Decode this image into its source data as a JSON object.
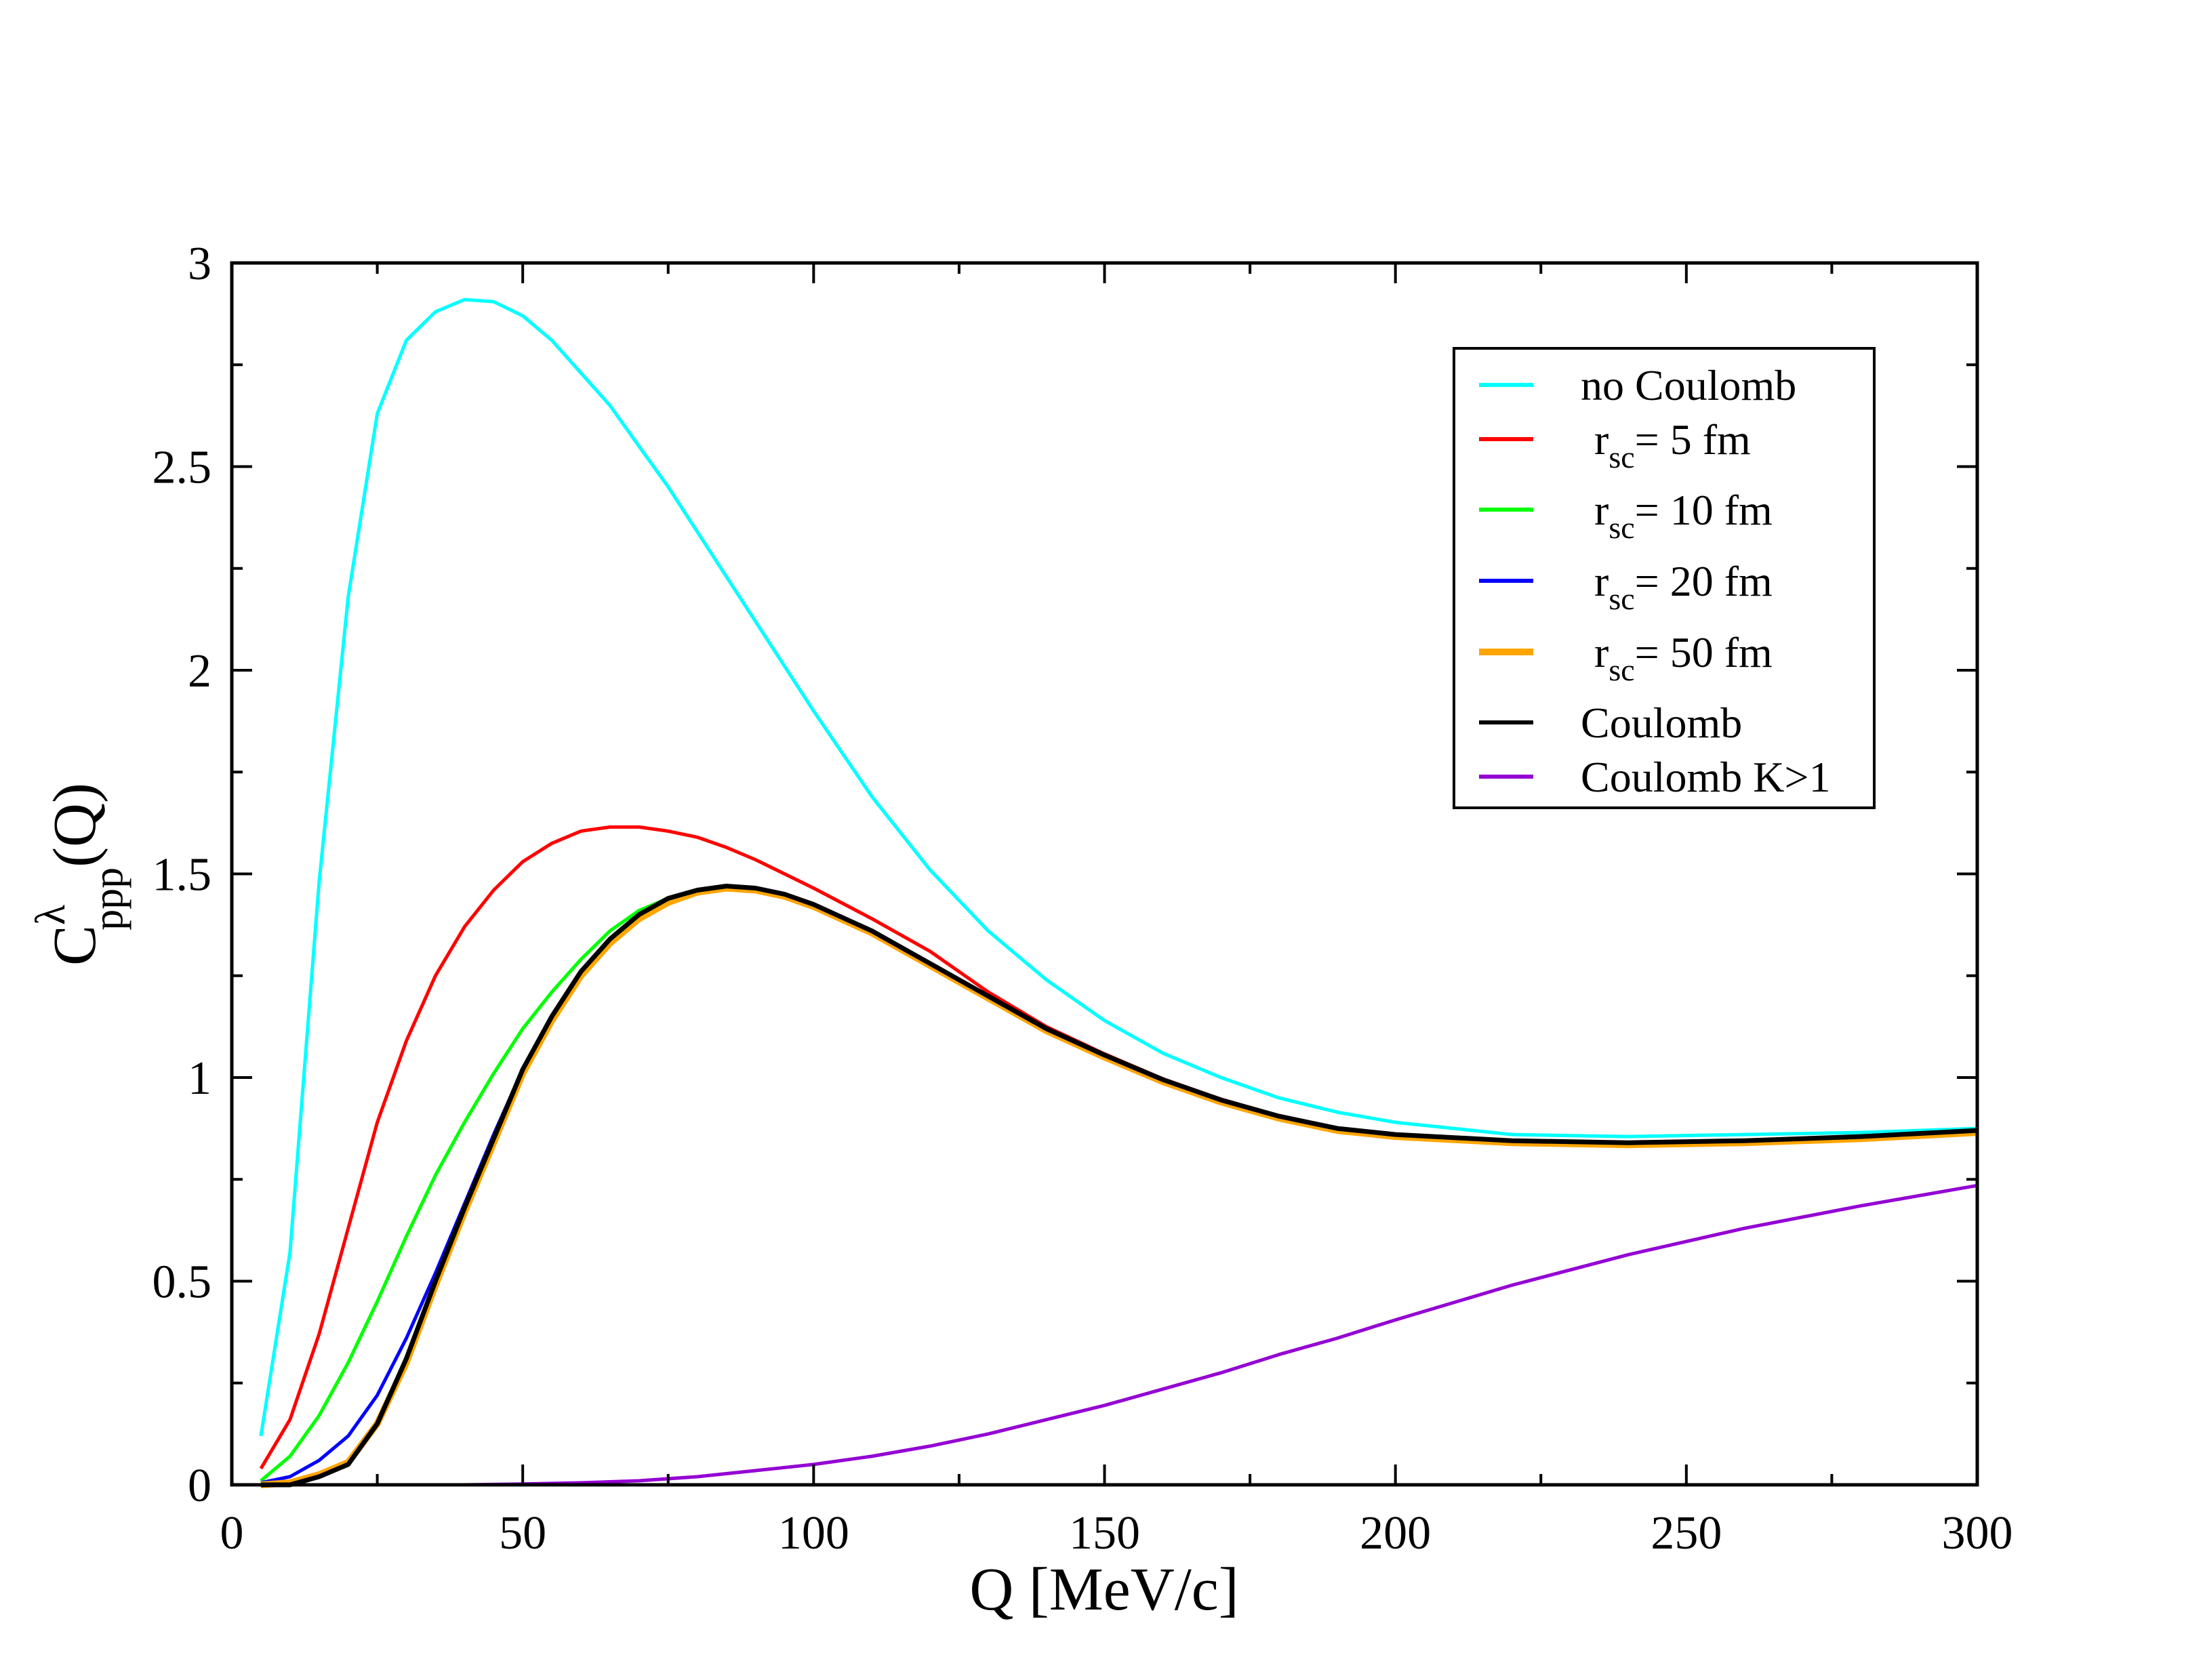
{
  "chart_data": {
    "type": "line",
    "xlabel": "Q [MeV/c]",
    "ylabel": {
      "main": "C",
      "sup": "λ",
      "sub": "ppp",
      "rest": "(Q)"
    },
    "xlim": [
      0,
      300
    ],
    "ylim": [
      0,
      3
    ],
    "xticks": [
      "0",
      "50",
      "100",
      "150",
      "200",
      "250",
      "300"
    ],
    "xtick_values": [
      0,
      50,
      100,
      150,
      200,
      250,
      300
    ],
    "yticks": [
      "0",
      "0.5",
      "1",
      "1.5",
      "2",
      "2.5",
      "3"
    ],
    "ytick_values": [
      0,
      0.5,
      1,
      1.5,
      2,
      2.5,
      3
    ],
    "grid": false,
    "legend_placement": "top-right",
    "series": [
      {
        "name": "no Coulomb",
        "label": {
          "main": "no Coulomb"
        },
        "color": "#00ffff",
        "x": [
          5,
          10,
          15,
          20,
          25,
          30,
          35,
          40,
          45,
          50,
          55,
          60,
          65,
          70,
          75,
          80,
          90,
          100,
          110,
          120,
          130,
          140,
          150,
          160,
          170,
          180,
          190,
          200,
          220,
          240,
          260,
          280,
          300
        ],
        "y": [
          0.12,
          0.57,
          1.48,
          2.18,
          2.63,
          2.81,
          2.88,
          2.91,
          2.905,
          2.87,
          2.81,
          2.73,
          2.65,
          2.55,
          2.45,
          2.34,
          2.12,
          1.9,
          1.69,
          1.51,
          1.36,
          1.24,
          1.14,
          1.06,
          1.0,
          0.95,
          0.915,
          0.89,
          0.86,
          0.855,
          0.86,
          0.865,
          0.875
        ]
      },
      {
        "name": "r_sc= 5 fm",
        "label": {
          "main": "r",
          "sub": "sc",
          "rest": "= 5 fm"
        },
        "color": "#ff0000",
        "x": [
          5,
          10,
          15,
          20,
          25,
          30,
          35,
          40,
          45,
          50,
          55,
          60,
          65,
          70,
          75,
          80,
          85,
          90,
          100,
          110,
          120,
          130,
          140,
          150,
          160,
          170,
          180,
          190,
          200,
          220,
          240,
          260,
          280,
          300
        ],
        "y": [
          0.04,
          0.16,
          0.37,
          0.63,
          0.89,
          1.09,
          1.25,
          1.37,
          1.46,
          1.53,
          1.575,
          1.605,
          1.615,
          1.615,
          1.605,
          1.59,
          1.565,
          1.535,
          1.465,
          1.39,
          1.31,
          1.21,
          1.125,
          1.058,
          0.997,
          0.947,
          0.906,
          0.876,
          0.861,
          0.846,
          0.841,
          0.846,
          0.856,
          0.871
        ]
      },
      {
        "name": "r_sc= 10 fm",
        "label": {
          "main": "r",
          "sub": "sc",
          "rest": "= 10 fm"
        },
        "color": "#00ff00",
        "x": [
          5,
          10,
          15,
          20,
          25,
          30,
          35,
          40,
          45,
          50,
          55,
          60,
          65,
          70,
          75,
          80,
          85,
          90,
          95,
          100,
          110,
          120,
          130,
          140,
          150,
          160,
          170,
          180,
          190,
          200,
          220,
          240,
          260,
          280,
          300
        ],
        "y": [
          0.01,
          0.07,
          0.17,
          0.3,
          0.45,
          0.61,
          0.76,
          0.89,
          1.01,
          1.12,
          1.21,
          1.29,
          1.36,
          1.41,
          1.44,
          1.46,
          1.47,
          1.465,
          1.45,
          1.425,
          1.36,
          1.28,
          1.2,
          1.12,
          1.055,
          0.995,
          0.945,
          0.905,
          0.875,
          0.86,
          0.845,
          0.84,
          0.845,
          0.855,
          0.87
        ]
      },
      {
        "name": "r_sc= 20 fm",
        "label": {
          "main": "r",
          "sub": "sc",
          "rest": "= 20 fm"
        },
        "color": "#0000ff",
        "x": [
          5,
          10,
          15,
          20,
          25,
          30,
          35,
          40,
          45,
          50,
          55,
          60,
          65,
          70,
          75,
          80,
          85,
          90,
          95,
          100,
          110,
          120,
          130,
          140,
          150,
          160,
          170,
          180,
          190,
          200,
          220,
          240,
          260,
          280,
          300
        ],
        "y": [
          0.005,
          0.02,
          0.06,
          0.12,
          0.22,
          0.36,
          0.52,
          0.69,
          0.86,
          1.02,
          1.15,
          1.26,
          1.34,
          1.4,
          1.44,
          1.46,
          1.47,
          1.465,
          1.45,
          1.425,
          1.36,
          1.28,
          1.2,
          1.12,
          1.055,
          0.995,
          0.945,
          0.905,
          0.875,
          0.86,
          0.845,
          0.84,
          0.845,
          0.855,
          0.87
        ]
      },
      {
        "name": "r_sc= 50 fm",
        "label": {
          "main": "r",
          "sub": "sc",
          "rest": "= 50 fm"
        },
        "color": "#ffa500",
        "x": [
          5,
          10,
          15,
          20,
          25,
          30,
          35,
          40,
          45,
          50,
          55,
          60,
          65,
          70,
          75,
          80,
          85,
          90,
          95,
          100,
          110,
          120,
          130,
          140,
          150,
          160,
          170,
          180,
          190,
          200,
          220,
          240,
          260,
          280,
          300
        ],
        "y": [
          0,
          0.005,
          0.025,
          0.055,
          0.15,
          0.3,
          0.49,
          0.67,
          0.84,
          1.01,
          1.14,
          1.25,
          1.33,
          1.39,
          1.43,
          1.455,
          1.465,
          1.46,
          1.445,
          1.42,
          1.355,
          1.275,
          1.195,
          1.115,
          1.05,
          0.99,
          0.94,
          0.9,
          0.87,
          0.855,
          0.84,
          0.835,
          0.84,
          0.85,
          0.865
        ]
      },
      {
        "name": "Coulomb",
        "label": {
          "main": "Coulomb"
        },
        "color": "#000000",
        "x": [
          5,
          10,
          15,
          20,
          25,
          30,
          35,
          40,
          45,
          50,
          55,
          60,
          65,
          70,
          75,
          80,
          85,
          90,
          95,
          100,
          110,
          120,
          130,
          140,
          150,
          160,
          170,
          180,
          190,
          200,
          220,
          240,
          260,
          280,
          300
        ],
        "y": [
          0,
          0,
          0.02,
          0.05,
          0.15,
          0.31,
          0.5,
          0.68,
          0.85,
          1.02,
          1.15,
          1.26,
          1.34,
          1.4,
          1.44,
          1.46,
          1.47,
          1.465,
          1.45,
          1.425,
          1.36,
          1.28,
          1.2,
          1.12,
          1.055,
          0.995,
          0.945,
          0.905,
          0.875,
          0.86,
          0.845,
          0.84,
          0.845,
          0.855,
          0.87
        ]
      },
      {
        "name": "Coulomb K>1",
        "label": {
          "main": "Coulomb K>1"
        },
        "color": "#9400d3",
        "x": [
          5,
          20,
          40,
          50,
          60,
          70,
          80,
          90,
          100,
          110,
          120,
          130,
          140,
          150,
          160,
          170,
          180,
          190,
          200,
          220,
          240,
          260,
          280,
          300
        ],
        "y": [
          0,
          0,
          0,
          0.002,
          0.005,
          0.01,
          0.02,
          0.035,
          0.05,
          0.07,
          0.095,
          0.125,
          0.16,
          0.195,
          0.235,
          0.275,
          0.32,
          0.36,
          0.405,
          0.49,
          0.565,
          0.63,
          0.685,
          0.735
        ]
      }
    ]
  }
}
